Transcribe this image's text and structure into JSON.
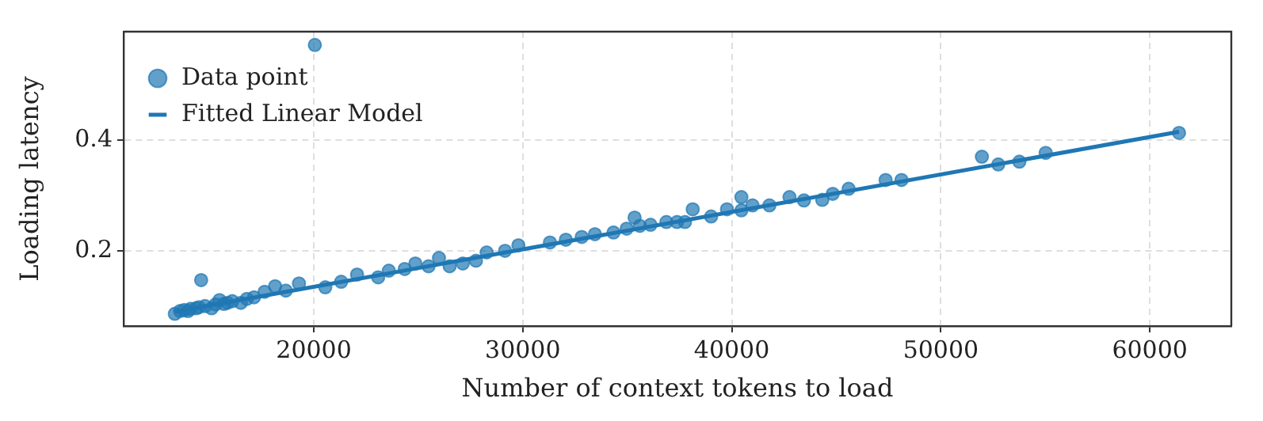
{
  "chart_data": {
    "type": "scatter",
    "xlabel": "Number of context tokens to load",
    "ylabel": "Loading latency",
    "xlim": [
      10900,
      63900
    ],
    "ylim": [
      0.064,
      0.596
    ],
    "xticks": [
      20000,
      30000,
      40000,
      50000,
      60000
    ],
    "yticks": [
      0.2,
      0.4
    ],
    "grid": true,
    "legend": "top left",
    "series": [
      {
        "name": "Data point",
        "marker": "circle",
        "color": "#1f77b4",
        "x": [
          13350,
          13600,
          13800,
          13980,
          14100,
          14360,
          14500,
          14610,
          14800,
          15110,
          15300,
          15490,
          15700,
          15870,
          16100,
          16510,
          16800,
          17140,
          17650,
          18150,
          18660,
          19290,
          20050,
          20550,
          21310,
          22070,
          23080,
          23590,
          24350,
          24860,
          25490,
          25990,
          26500,
          27130,
          27760,
          28270,
          29150,
          29790,
          31300,
          32060,
          32820,
          33450,
          34340,
          34970,
          35350,
          35600,
          36110,
          36870,
          37380,
          37760,
          38130,
          39010,
          39770,
          40460,
          40460,
          40990,
          41800,
          42760,
          43450,
          44330,
          44830,
          45590,
          47360,
          48120,
          51966,
          52750,
          53760,
          55020,
          61400
        ],
        "values": [
          0.086,
          0.091,
          0.093,
          0.091,
          0.095,
          0.096,
          0.098,
          0.147,
          0.1,
          0.096,
          0.103,
          0.111,
          0.104,
          0.106,
          0.109,
          0.106,
          0.113,
          0.116,
          0.126,
          0.136,
          0.128,
          0.141,
          0.572,
          0.134,
          0.144,
          0.157,
          0.152,
          0.164,
          0.167,
          0.177,
          0.172,
          0.187,
          0.172,
          0.177,
          0.182,
          0.197,
          0.2,
          0.21,
          0.215,
          0.22,
          0.225,
          0.23,
          0.233,
          0.24,
          0.26,
          0.245,
          0.247,
          0.252,
          0.252,
          0.252,
          0.275,
          0.262,
          0.275,
          0.297,
          0.273,
          0.282,
          0.282,
          0.297,
          0.291,
          0.292,
          0.303,
          0.312,
          0.328,
          0.328,
          0.37,
          0.356,
          0.361,
          0.377,
          0.413
        ]
      },
      {
        "name": "Fitted Linear Model",
        "type": "line",
        "marker": "none",
        "line_style": "solid",
        "color": "#1f77b4",
        "x": [
          13350,
          61400
        ],
        "values": [
          0.09,
          0.415
        ]
      }
    ]
  }
}
